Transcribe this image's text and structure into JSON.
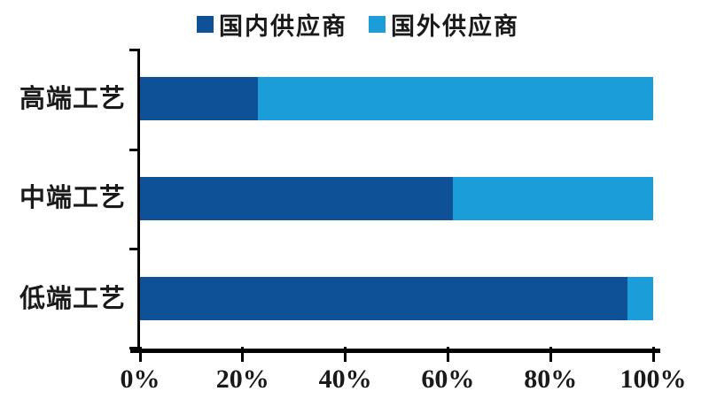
{
  "chart_data": {
    "type": "bar",
    "orientation": "horizontal",
    "stacked": true,
    "title": "",
    "xlabel": "",
    "ylabel": "",
    "unit": "percent",
    "categories": [
      "高端工艺",
      "中端工艺",
      "低端工艺"
    ],
    "series": [
      {
        "name": "国内供应商",
        "color": "#0e5196",
        "values": [
          23,
          61,
          95
        ]
      },
      {
        "name": "国外供应商",
        "color": "#1b9dd9",
        "values": [
          77,
          39,
          5
        ]
      }
    ],
    "xlim": [
      0,
      100
    ],
    "x_tick_labels": [
      "0%",
      "20%",
      "40%",
      "60%",
      "80%",
      "100%"
    ],
    "legend_position": "top",
    "grid": false,
    "axis_color": "#000000",
    "text_color": "#1a1a1a",
    "background_color": "#ffffff"
  }
}
